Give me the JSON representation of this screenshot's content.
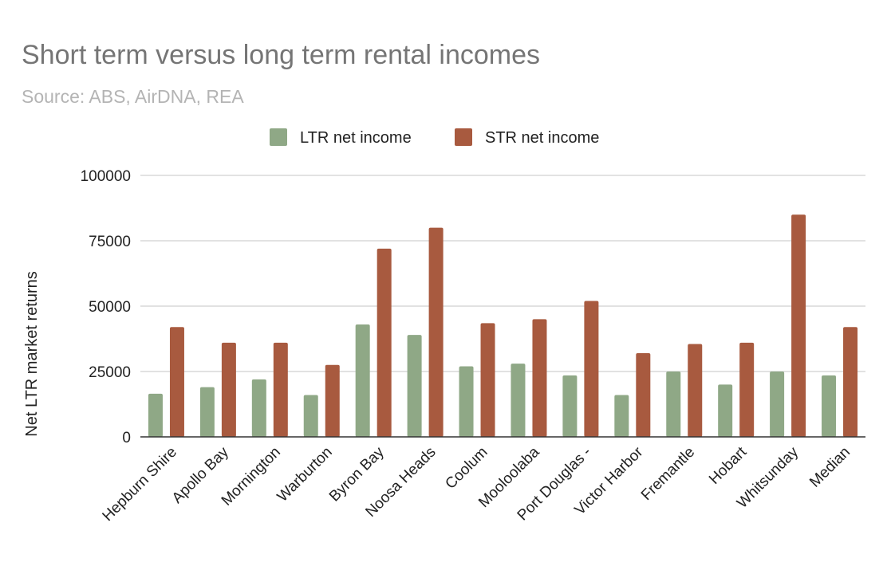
{
  "chart_data": {
    "type": "bar",
    "title": "Short term versus long term rental incomes",
    "subtitle": "Source: ABS, AirDNA, REA",
    "xlabel": "",
    "ylabel": "Net LTR market returns",
    "ylim": [
      0,
      100000
    ],
    "yticks": [
      "0",
      "25000",
      "50000",
      "75000",
      "100000"
    ],
    "legend_position": "top",
    "categories": [
      "Hepburn Shire",
      "Apollo Bay",
      "Mornington",
      "Warburton",
      "Byron Bay",
      "Noosa Heads",
      "Coolum",
      "Mooloolaba",
      "Port Douglas -",
      "Victor Harbor",
      "Fremantle",
      "Hobart",
      "Whitsunday",
      "Median"
    ],
    "series": [
      {
        "name": "LTR net income",
        "color": "#8fa886",
        "values": [
          16500,
          19000,
          22000,
          16000,
          43000,
          39000,
          27000,
          28000,
          23500,
          16000,
          25000,
          20000,
          25000,
          23500
        ]
      },
      {
        "name": "STR net income",
        "color": "#a85a3f",
        "values": [
          42000,
          36000,
          36000,
          27500,
          72000,
          80000,
          43500,
          45000,
          52000,
          32000,
          35500,
          36000,
          85000,
          42000
        ]
      }
    ]
  }
}
